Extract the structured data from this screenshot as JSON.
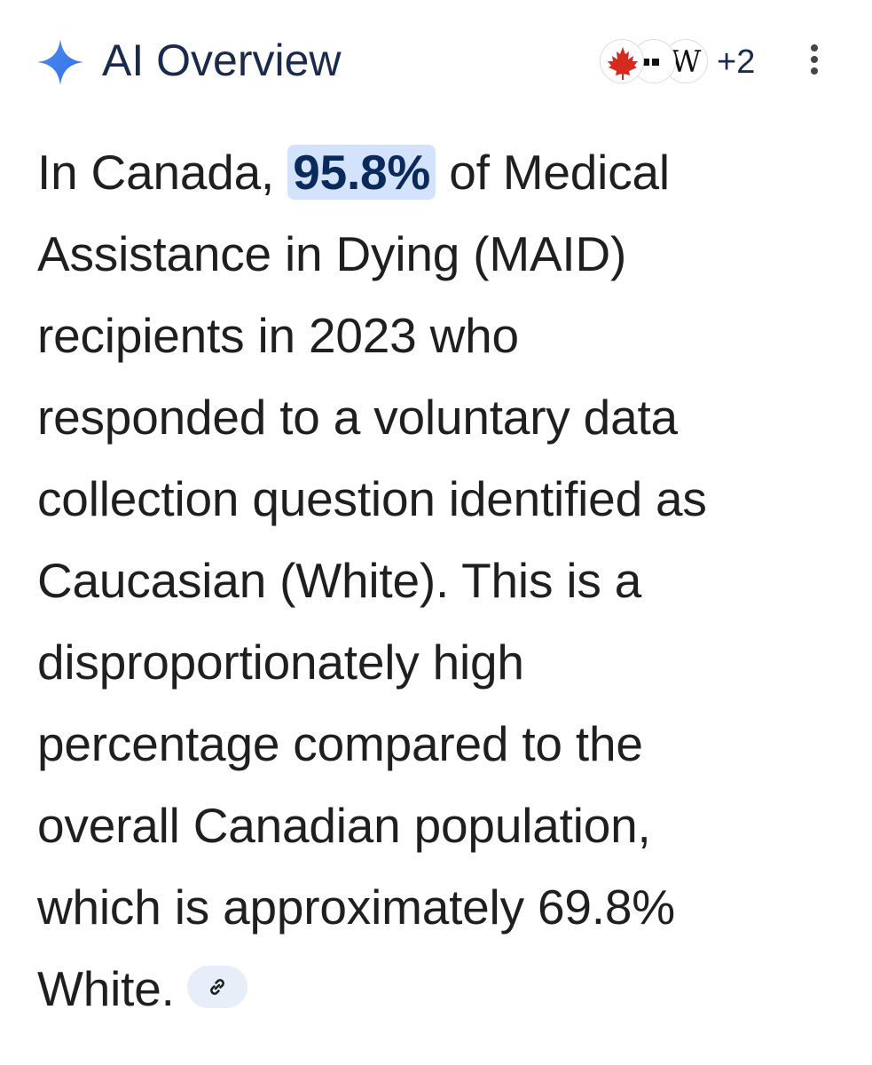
{
  "header": {
    "title": "AI Overview",
    "sparkle_icon": "sparkle-icon",
    "sources": {
      "icons": [
        "canada-flag-icon",
        "source-dots-icon",
        "wikipedia-icon"
      ],
      "wikipedia_glyph": "W",
      "more_count": "+2"
    },
    "menu_icon": "kebab-menu-icon"
  },
  "overview": {
    "lines": {
      "l1_pre": "In Canada,",
      "l1_highlight": "95.8%",
      "l1_post": "of Medical",
      "l2": "Assistance in Dying (MAID)",
      "l3": "recipients in 2023 who",
      "l4": "responded to a voluntary data",
      "l5": "collection question identified as",
      "l6": "Caucasian (White). This is a",
      "l7": "disproportionately high",
      "l8": "percentage compared to the",
      "l9": "overall Canadian population,",
      "l10": "which is approximately 69.8%",
      "l11": "White."
    },
    "link_icon": "link-icon"
  },
  "colors": {
    "title": "#1a2a4d",
    "highlight_bg": "#d3e3fd",
    "highlight_text": "#0b2a5c",
    "chip_bg": "#e8eef9",
    "sparkle": "#3b82f6"
  }
}
